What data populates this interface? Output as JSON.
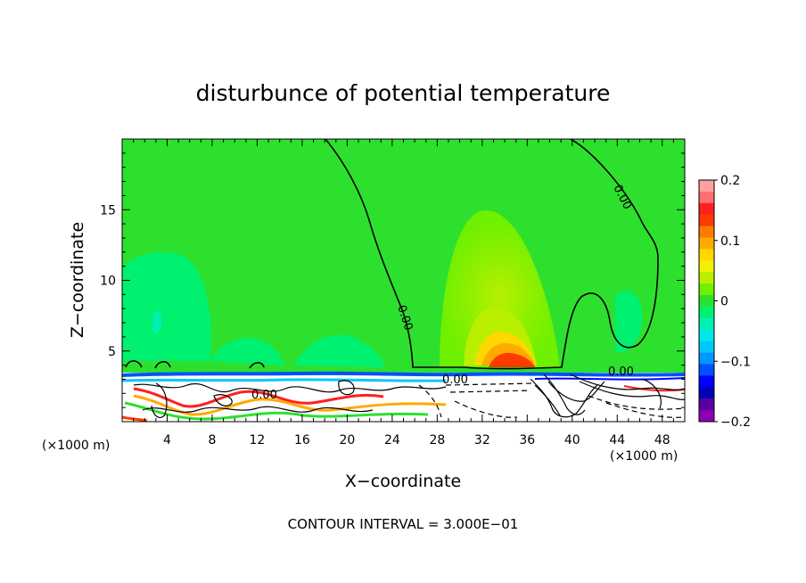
{
  "chart_data": {
    "type": "heatmap",
    "title": "disturbunce of potential temperature",
    "xlabel": "X−coordinate",
    "ylabel": "Z−coordinate",
    "x_unit": "(×1000 m)",
    "x_unit_right": "(×1000 m)",
    "xlim": [
      0,
      50
    ],
    "ylim": [
      0,
      20
    ],
    "x_ticks": [
      4,
      8,
      12,
      16,
      20,
      24,
      28,
      32,
      36,
      40,
      44,
      48
    ],
    "y_ticks": [
      5,
      10,
      15
    ],
    "footer": "CONTOUR INTERVAL = 3.000E−01",
    "contour_labels": [
      "0.00",
      "0.00",
      "0.00",
      "0.00",
      "0.00"
    ],
    "colorbar": {
      "ticks": [
        0.2,
        0.1,
        0,
        -0.1,
        -0.2
      ],
      "tick_labels": [
        "0.2",
        "0.1",
        "0",
        "−0.1",
        "−0.2"
      ],
      "colors": [
        "#ffa0a0",
        "#ff7070",
        "#ff2020",
        "#ff3a00",
        "#ff7a00",
        "#ffaa00",
        "#ffd800",
        "#f2f200",
        "#b8f000",
        "#6ef000",
        "#2ee02e",
        "#00f070",
        "#00f0b4",
        "#00e8e8",
        "#00c8ff",
        "#0096ff",
        "#0050ff",
        "#0000ff",
        "#0000b8",
        "#5a00a0",
        "#8c00b4"
      ]
    },
    "background_color": "#2ee02e",
    "anomaly_colors": {
      "warm_light": "#6ef000",
      "warm_mid": "#b8f000",
      "warm_strong": "#ffd800",
      "warm_peak": "#ff3a00",
      "cool_light": "#00f070",
      "cool_mid": "#00f0b4"
    }
  }
}
